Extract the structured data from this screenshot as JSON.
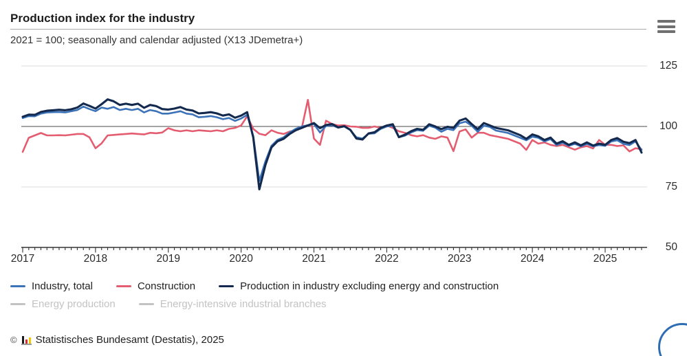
{
  "header": {
    "title": "Production index for the industry",
    "subtitle": "2021 = 100; seasonally and calendar adjusted (X13 JDemetra+)",
    "menu_icon": "hamburger-menu"
  },
  "chart_data": {
    "type": "line",
    "title": "Production index for the industry",
    "x_unit": "month",
    "x_range": [
      "2017-01",
      "2025-07"
    ],
    "x_tick_labels": [
      "2017",
      "2018",
      "2019",
      "2020",
      "2021",
      "2022",
      "2023",
      "2024",
      "2025"
    ],
    "y_ticks": [
      125,
      100,
      75,
      50
    ],
    "ylim": [
      50,
      128
    ],
    "baseline_value": 100,
    "grid": "horizontal",
    "legend_position": "bottom",
    "series": [
      {
        "name": "Industry, total",
        "color": "#3B72B8",
        "z": 2,
        "values": [
          103.5,
          104.3,
          104.2,
          105.3,
          105.8,
          105.9,
          106.0,
          105.8,
          106.3,
          106.8,
          108.2,
          107.2,
          106.3,
          107.8,
          107.3,
          108.0,
          106.8,
          107.3,
          106.8,
          107.3,
          105.8,
          106.8,
          106.3,
          105.3,
          105.3,
          105.8,
          106.3,
          105.3,
          105.0,
          103.8,
          104.0,
          104.3,
          103.8,
          103.0,
          103.5,
          102.3,
          103.3,
          104.8,
          96.0,
          77.5,
          85.5,
          92.0,
          94.5,
          95.5,
          97.5,
          99.0,
          100.0,
          100.5,
          101.0,
          97.5,
          100.2,
          100.5,
          99.5,
          100.0,
          98.5,
          95.5,
          95.0,
          97.0,
          97.2,
          99.0,
          100.0,
          100.3,
          95.5,
          96.2,
          97.5,
          98.5,
          98.2,
          100.3,
          99.5,
          97.8,
          99.0,
          98.5,
          101.3,
          102.0,
          100.3,
          97.8,
          100.3,
          99.8,
          98.3,
          97.8,
          97.3,
          96.3,
          95.3,
          94.3,
          95.8,
          95.3,
          93.8,
          94.8,
          92.3,
          93.3,
          92.0,
          92.8,
          91.8,
          92.8,
          91.8,
          92.3,
          92.0,
          93.8,
          94.3,
          92.8,
          92.3,
          93.8,
          90.3
        ]
      },
      {
        "name": "Construction",
        "color": "#E45C6F",
        "z": 1,
        "values": [
          89.5,
          95.3,
          96.3,
          97.3,
          96.3,
          96.3,
          96.4,
          96.3,
          96.6,
          96.9,
          96.9,
          95.5,
          91.0,
          93.0,
          96.3,
          96.5,
          96.7,
          96.9,
          97.1,
          96.9,
          96.7,
          97.4,
          97.2,
          97.5,
          99.3,
          98.4,
          98.0,
          98.4,
          98.0,
          98.4,
          98.2,
          98.0,
          98.4,
          98.0,
          99.0,
          99.4,
          100.4,
          104.2,
          99.0,
          97.0,
          96.4,
          98.4,
          97.4,
          96.9,
          97.9,
          98.4,
          99.4,
          111.0,
          95.0,
          92.4,
          102.4,
          101.0,
          100.4,
          100.5,
          100.0,
          99.9,
          99.4,
          99.4,
          100.0,
          99.4,
          100.4,
          99.4,
          98.0,
          97.4,
          96.4,
          95.9,
          96.4,
          95.4,
          94.9,
          95.9,
          95.4,
          89.8,
          97.9,
          98.8,
          95.4,
          97.4,
          97.4,
          96.4,
          95.9,
          95.4,
          94.9,
          93.9,
          92.9,
          90.3,
          94.4,
          92.9,
          93.4,
          92.4,
          91.9,
          92.4,
          91.4,
          90.4,
          91.4,
          91.9,
          90.9,
          94.4,
          92.4,
          92.4,
          91.9,
          92.2,
          89.7,
          91.0,
          90.6
        ]
      },
      {
        "name": "Production in industry excluding energy and construction",
        "color": "#13294E",
        "z": 3,
        "values": [
          104.0,
          104.9,
          104.8,
          106.0,
          106.5,
          106.7,
          106.9,
          106.7,
          107.1,
          107.8,
          109.5,
          108.5,
          107.4,
          109.2,
          111.2,
          110.4,
          108.9,
          109.4,
          108.9,
          109.4,
          107.7,
          108.9,
          108.4,
          107.2,
          107.0,
          107.4,
          108.0,
          107.0,
          106.6,
          105.4,
          105.6,
          105.9,
          105.4,
          104.5,
          105.0,
          103.6,
          104.5,
          105.9,
          95.4,
          74.0,
          84.0,
          91.3,
          93.9,
          94.9,
          96.9,
          98.4,
          99.4,
          100.4,
          101.4,
          99.3,
          100.6,
          101.0,
          99.6,
          100.1,
          98.6,
          95.0,
          94.6,
          97.1,
          97.6,
          99.4,
          100.4,
          100.9,
          95.6,
          96.6,
          98.0,
          99.0,
          98.6,
          100.9,
          100.0,
          98.9,
          99.9,
          99.4,
          102.4,
          103.3,
          101.0,
          98.9,
          101.4,
          100.4,
          99.4,
          98.9,
          98.4,
          97.4,
          96.4,
          94.9,
          96.7,
          95.9,
          94.4,
          95.4,
          92.9,
          93.9,
          92.4,
          93.4,
          92.2,
          93.4,
          92.1,
          92.9,
          92.4,
          94.4,
          95.2,
          93.7,
          93.1,
          94.4,
          89.2
        ]
      }
    ]
  },
  "legend": {
    "inactive_items": [
      {
        "name": "Energy production"
      },
      {
        "name": "Energy-intensive industrial branches"
      }
    ],
    "inactive_color": "#c3c3c3"
  },
  "footer": {
    "copyright_symbol": "©",
    "logo_icon": "destatis-mini-bar-chart",
    "source": "Statistisches Bundesamt (Destatis), 2025"
  }
}
